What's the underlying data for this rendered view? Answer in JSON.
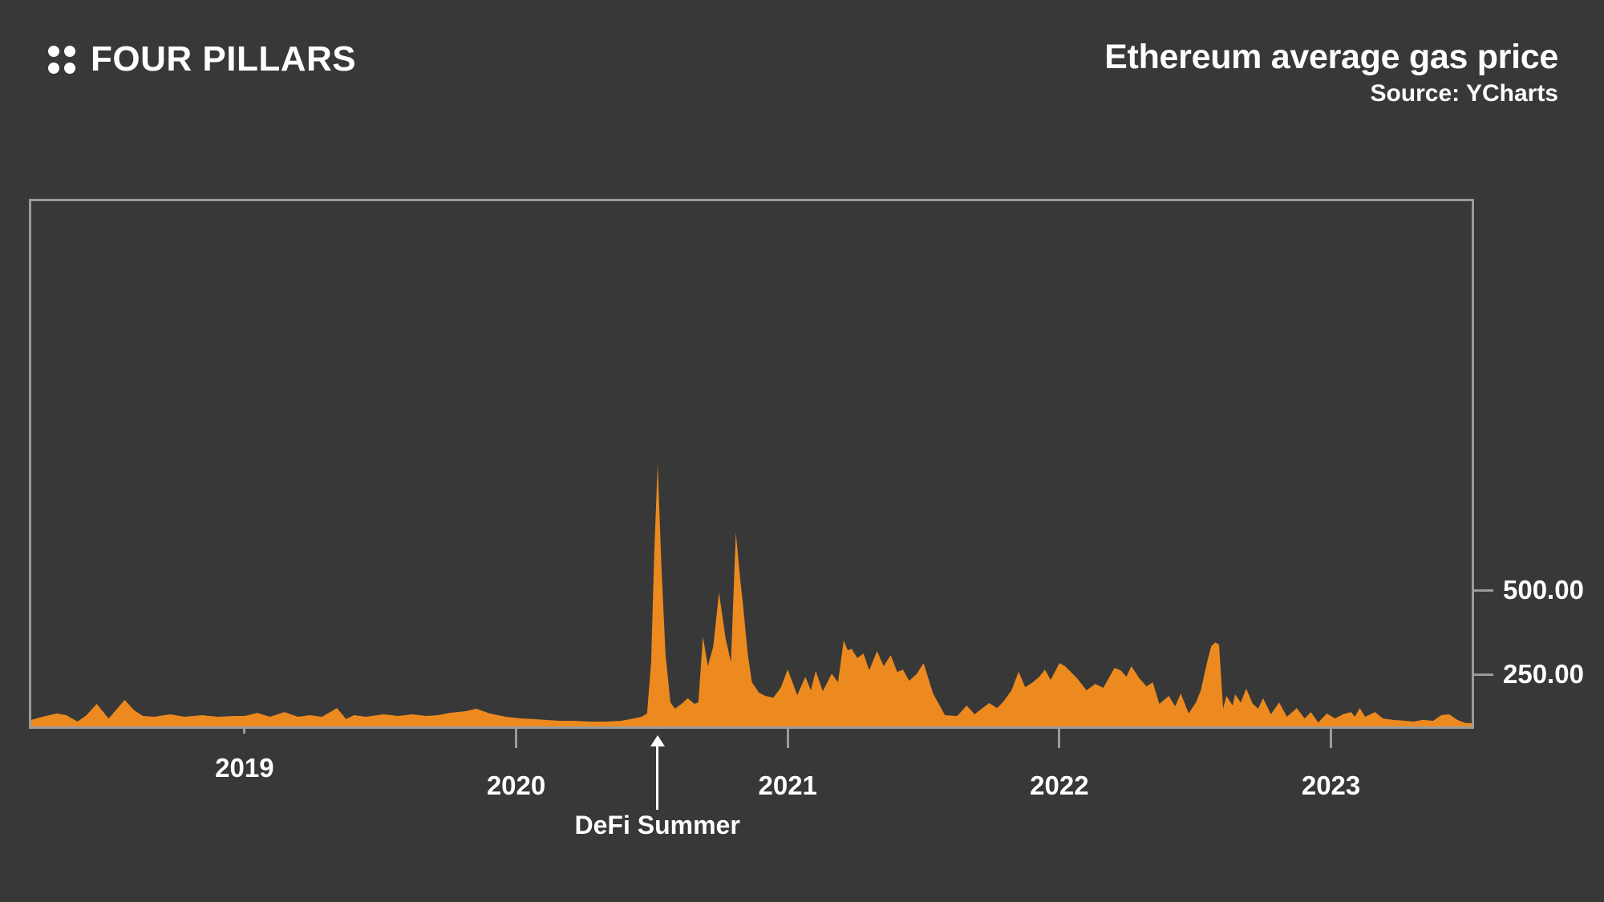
{
  "header": {
    "logo_text": "FOUR PILLARS",
    "title": "Ethereum average gas price",
    "source": "Source: YCharts"
  },
  "chart_data": {
    "type": "area",
    "title": "Ethereum average gas price",
    "source": "Source: YCharts",
    "series_name": "Ethereum average gas price",
    "legend": "none",
    "grid": "off",
    "x_axis": {
      "range": [
        2018.215,
        2023.518
      ],
      "ticks": [
        {
          "label": "2019",
          "t": 2019,
          "short_tick": true,
          "raised_label": true
        },
        {
          "label": "2020",
          "t": 2020
        },
        {
          "label": "2021",
          "t": 2021
        },
        {
          "label": "2022",
          "t": 2022
        },
        {
          "label": "2023",
          "t": 2023
        }
      ]
    },
    "y_axis": {
      "side": "right",
      "ticks": [
        {
          "label": "500.00",
          "value": 500
        },
        {
          "label": "250.00",
          "value": 250
        }
      ]
    },
    "annotations": [
      {
        "label": "DeFi Summer",
        "t": 2020.52
      }
    ],
    "colors": {
      "area": "#ED8A1F",
      "background": "#383838",
      "frame": "#9B9B9B",
      "text": "#FFFFFF"
    },
    "points": [
      [
        2018.215,
        31
      ],
      [
        2018.256,
        46
      ],
      [
        2018.309,
        62
      ],
      [
        2018.344,
        54
      ],
      [
        2018.385,
        23
      ],
      [
        2018.418,
        54
      ],
      [
        2018.456,
        108
      ],
      [
        2018.5,
        38
      ],
      [
        2018.559,
        127
      ],
      [
        2018.594,
        77
      ],
      [
        2018.626,
        50
      ],
      [
        2018.668,
        46
      ],
      [
        2018.726,
        58
      ],
      [
        2018.779,
        46
      ],
      [
        2018.844,
        54
      ],
      [
        2018.903,
        46
      ],
      [
        2018.962,
        50
      ],
      [
        2019.0,
        50
      ],
      [
        2019.047,
        65
      ],
      [
        2019.094,
        46
      ],
      [
        2019.147,
        69
      ],
      [
        2019.197,
        46
      ],
      [
        2019.241,
        54
      ],
      [
        2019.285,
        46
      ],
      [
        2019.341,
        88
      ],
      [
        2019.374,
        35
      ],
      [
        2019.403,
        54
      ],
      [
        2019.447,
        46
      ],
      [
        2019.512,
        58
      ],
      [
        2019.565,
        50
      ],
      [
        2019.618,
        58
      ],
      [
        2019.668,
        50
      ],
      [
        2019.712,
        54
      ],
      [
        2019.756,
        65
      ],
      [
        2019.815,
        73
      ],
      [
        2019.853,
        85
      ],
      [
        2019.903,
        62
      ],
      [
        2019.962,
        46
      ],
      [
        2020.021,
        38
      ],
      [
        2020.065,
        35
      ],
      [
        2020.109,
        31
      ],
      [
        2020.159,
        27
      ],
      [
        2020.212,
        27
      ],
      [
        2020.271,
        23
      ],
      [
        2020.329,
        23
      ],
      [
        2020.388,
        27
      ],
      [
        2020.432,
        38
      ],
      [
        2020.462,
        46
      ],
      [
        2020.482,
        62
      ],
      [
        2020.497,
        286
      ],
      [
        2020.509,
        619
      ],
      [
        2020.521,
        874
      ],
      [
        2020.535,
        571
      ],
      [
        2020.55,
        310
      ],
      [
        2020.568,
        115
      ],
      [
        2020.585,
        85
      ],
      [
        2020.609,
        108
      ],
      [
        2020.632,
        135
      ],
      [
        2020.656,
        108
      ],
      [
        2020.671,
        115
      ],
      [
        2020.688,
        362
      ],
      [
        2020.706,
        274
      ],
      [
        2020.726,
        333
      ],
      [
        2020.747,
        493
      ],
      [
        2020.771,
        357
      ],
      [
        2020.791,
        286
      ],
      [
        2020.809,
        671
      ],
      [
        2020.826,
        524
      ],
      [
        2020.835,
        460
      ],
      [
        2020.853,
        310
      ],
      [
        2020.868,
        212
      ],
      [
        2020.894,
        162
      ],
      [
        2020.918,
        146
      ],
      [
        2020.947,
        138
      ],
      [
        2020.974,
        185
      ],
      [
        2021.0,
        264
      ],
      [
        2021.035,
        150
      ],
      [
        2021.065,
        238
      ],
      [
        2021.085,
        173
      ],
      [
        2021.103,
        260
      ],
      [
        2021.129,
        169
      ],
      [
        2021.162,
        252
      ],
      [
        2021.185,
        212
      ],
      [
        2021.206,
        350
      ],
      [
        2021.221,
        321
      ],
      [
        2021.235,
        326
      ],
      [
        2021.256,
        298
      ],
      [
        2021.279,
        312
      ],
      [
        2021.3,
        262
      ],
      [
        2021.329,
        319
      ],
      [
        2021.353,
        274
      ],
      [
        2021.379,
        307
      ],
      [
        2021.403,
        257
      ],
      [
        2021.424,
        264
      ],
      [
        2021.447,
        219
      ],
      [
        2021.474,
        250
      ],
      [
        2021.5,
        283
      ],
      [
        2021.535,
        158
      ],
      [
        2021.579,
        54
      ],
      [
        2021.624,
        50
      ],
      [
        2021.659,
        100
      ],
      [
        2021.688,
        58
      ],
      [
        2021.741,
        112
      ],
      [
        2021.771,
        88
      ],
      [
        2021.794,
        119
      ],
      [
        2021.824,
        173
      ],
      [
        2021.85,
        258
      ],
      [
        2021.874,
        188
      ],
      [
        2021.903,
        212
      ],
      [
        2021.926,
        238
      ],
      [
        2021.947,
        264
      ],
      [
        2021.968,
        223
      ],
      [
        2022.0,
        283
      ],
      [
        2022.021,
        274
      ],
      [
        2022.065,
        231
      ],
      [
        2022.1,
        173
      ],
      [
        2022.132,
        204
      ],
      [
        2022.162,
        185
      ],
      [
        2022.203,
        269
      ],
      [
        2022.226,
        262
      ],
      [
        2022.247,
        238
      ],
      [
        2022.265,
        274
      ],
      [
        2022.294,
        231
      ],
      [
        2022.321,
        192
      ],
      [
        2022.344,
        212
      ],
      [
        2022.368,
        108
      ],
      [
        2022.403,
        146
      ],
      [
        2022.426,
        96
      ],
      [
        2022.447,
        158
      ],
      [
        2022.476,
        62
      ],
      [
        2022.503,
        115
      ],
      [
        2022.521,
        173
      ],
      [
        2022.544,
        286
      ],
      [
        2022.559,
        333
      ],
      [
        2022.574,
        345
      ],
      [
        2022.588,
        338
      ],
      [
        2022.603,
        85
      ],
      [
        2022.615,
        146
      ],
      [
        2022.638,
        100
      ],
      [
        2022.647,
        154
      ],
      [
        2022.668,
        115
      ],
      [
        2022.688,
        181
      ],
      [
        2022.712,
        108
      ],
      [
        2022.732,
        85
      ],
      [
        2022.75,
        135
      ],
      [
        2022.779,
        58
      ],
      [
        2022.809,
        115
      ],
      [
        2022.838,
        46
      ],
      [
        2022.874,
        88
      ],
      [
        2022.903,
        38
      ],
      [
        2022.926,
        69
      ],
      [
        2022.953,
        19
      ],
      [
        2022.985,
        62
      ],
      [
        2023.015,
        38
      ],
      [
        2023.044,
        58
      ],
      [
        2023.074,
        69
      ],
      [
        2023.088,
        46
      ],
      [
        2023.106,
        88
      ],
      [
        2023.126,
        46
      ],
      [
        2023.162,
        69
      ],
      [
        2023.191,
        38
      ],
      [
        2023.229,
        31
      ],
      [
        2023.274,
        27
      ],
      [
        2023.303,
        23
      ],
      [
        2023.338,
        31
      ],
      [
        2023.376,
        27
      ],
      [
        2023.406,
        54
      ],
      [
        2023.435,
        58
      ],
      [
        2023.465,
        31
      ],
      [
        2023.494,
        17
      ],
      [
        2023.518,
        15
      ]
    ]
  }
}
